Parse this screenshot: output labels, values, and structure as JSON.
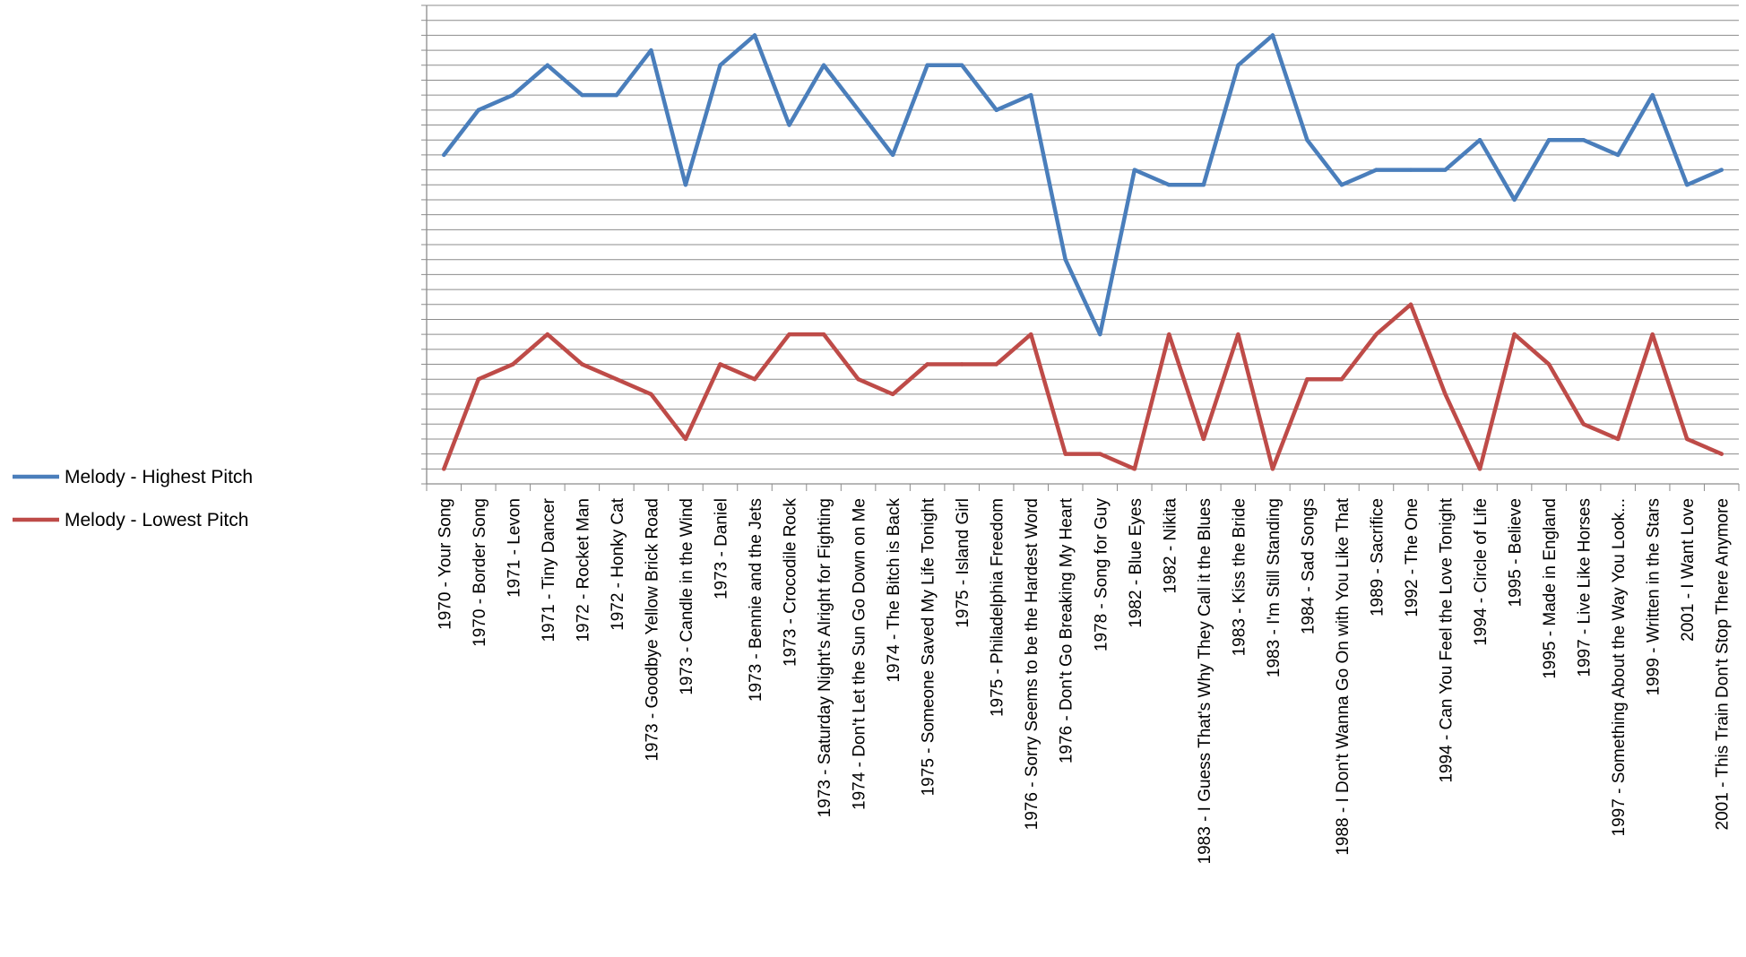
{
  "chart_data": {
    "type": "line",
    "title": "",
    "xlabel": "",
    "ylabel": "",
    "grid": true,
    "legend_position": "left",
    "y_tick_labels_shown": false,
    "ylim": [
      0,
      32
    ],
    "categories": [
      "1970 - Your Song",
      "1970 - Border Song",
      "1971 - Levon",
      "1971 - Tiny Dancer",
      "1972 - Rocket Man",
      "1972 - Honky Cat",
      "1973 - Goodbye Yellow Brick Road",
      "1973 - Candle in the Wind",
      "1973 - Daniel",
      "1973 - Bennie and the Jets",
      "1973 - Crocodile Rock",
      "1973 - Saturday Night's Alright for Fighting",
      "1974 - Don't Let the Sun Go Down on Me",
      "1974 - The Bitch is Back",
      "1975 - Someone Saved My Life Tonight",
      "1975 - Island Girl",
      "1975 - Philadelphia Freedom",
      "1976 - Sorry Seems to be the Hardest Word",
      "1976 - Don't Go Breaking My Heart",
      "1978 - Song for Guy",
      "1982 - Blue Eyes",
      "1982 - Nikita",
      "1983 - I Guess That's Why They Call it the Blues",
      "1983 - Kiss the Bride",
      "1983 - I'm Still Standing",
      "1984 - Sad Songs",
      "1988 - I Don't Wanna Go On with You Like That",
      "1989 - Sacrifice",
      "1992 - The One",
      "1994 - Can You Feel the Love Tonight",
      "1994 - Circle of Life",
      "1995 - Believe",
      "1995 - Made in England",
      "1997 - Live Like Horses",
      "1997 - Something About the Way You Look...",
      "1999 - Written in the Stars",
      "2001 - I Want Love",
      "2001 - This Train Don't Stop There Anymore"
    ],
    "series": [
      {
        "name": "Melody - Highest Pitch",
        "color": "#4a7ebb",
        "values": [
          22,
          25,
          26,
          28,
          26,
          26,
          29,
          20,
          28,
          30,
          24,
          28,
          25,
          22,
          28,
          28,
          25,
          26,
          15,
          10,
          21,
          20,
          20,
          28,
          30,
          23,
          20,
          21,
          21,
          21,
          23,
          19,
          23,
          23,
          22,
          26,
          20,
          21
        ]
      },
      {
        "name": "Melody - Lowest Pitch",
        "color": "#be4b48",
        "values": [
          1,
          7,
          8,
          10,
          8,
          7,
          6,
          3,
          8,
          7,
          10,
          10,
          7,
          6,
          8,
          8,
          8,
          10,
          2,
          2,
          1,
          10,
          3,
          10,
          1,
          7,
          7,
          10,
          12,
          6,
          1,
          10,
          8,
          4,
          3,
          10,
          3,
          2
        ]
      }
    ]
  }
}
